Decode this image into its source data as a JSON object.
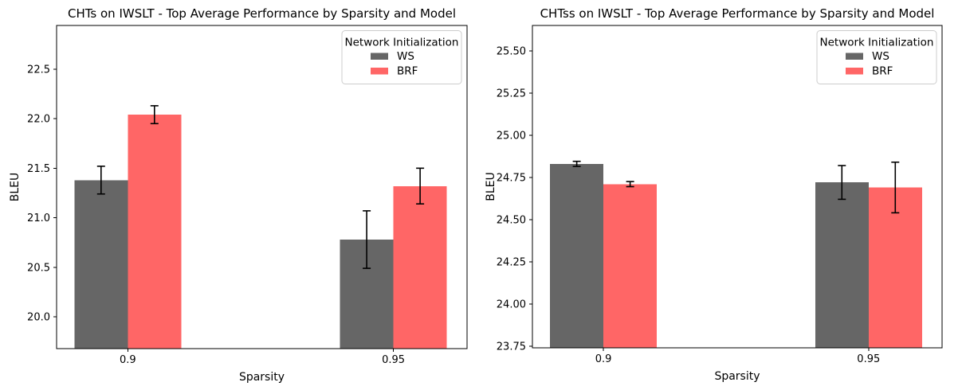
{
  "chart_data": [
    {
      "type": "bar",
      "title": "CHTs on IWSLT - Top Average Performance by Sparsity and Model",
      "xlabel": "Sparsity",
      "ylabel": "BLEU",
      "categories": [
        "0.9",
        "0.95"
      ],
      "series": [
        {
          "name": "WS",
          "color": "#666666",
          "values": [
            21.38,
            20.78
          ],
          "errors": [
            0.14,
            0.29
          ]
        },
        {
          "name": "BRF",
          "color": "#ff6666",
          "values": [
            22.04,
            21.32
          ],
          "errors": [
            0.09,
            0.18
          ]
        }
      ],
      "ylim": [
        19.68,
        22.94
      ],
      "ytick_labels": [
        "20.0",
        "20.5",
        "21.0",
        "21.5",
        "22.0",
        "22.5"
      ],
      "legend": {
        "title": "Network Initialization",
        "position": "upper right"
      },
      "grid": false
    },
    {
      "type": "bar",
      "title": "CHTss on IWSLT - Top Average Performance by Sparsity and Model",
      "xlabel": "Sparsity",
      "ylabel": "BLEU",
      "categories": [
        "0.9",
        "0.95"
      ],
      "series": [
        {
          "name": "WS",
          "color": "#666666",
          "values": [
            24.83,
            24.72
          ],
          "errors": [
            0.015,
            0.1
          ]
        },
        {
          "name": "BRF",
          "color": "#ff6666",
          "values": [
            24.71,
            24.69
          ],
          "errors": [
            0.015,
            0.15
          ]
        }
      ],
      "ylim": [
        23.74,
        25.65
      ],
      "ytick_labels": [
        "23.75",
        "24.00",
        "24.25",
        "24.50",
        "24.75",
        "25.00",
        "25.25",
        "25.50"
      ],
      "legend": {
        "title": "Network Initialization",
        "position": "upper right"
      },
      "grid": false
    }
  ]
}
